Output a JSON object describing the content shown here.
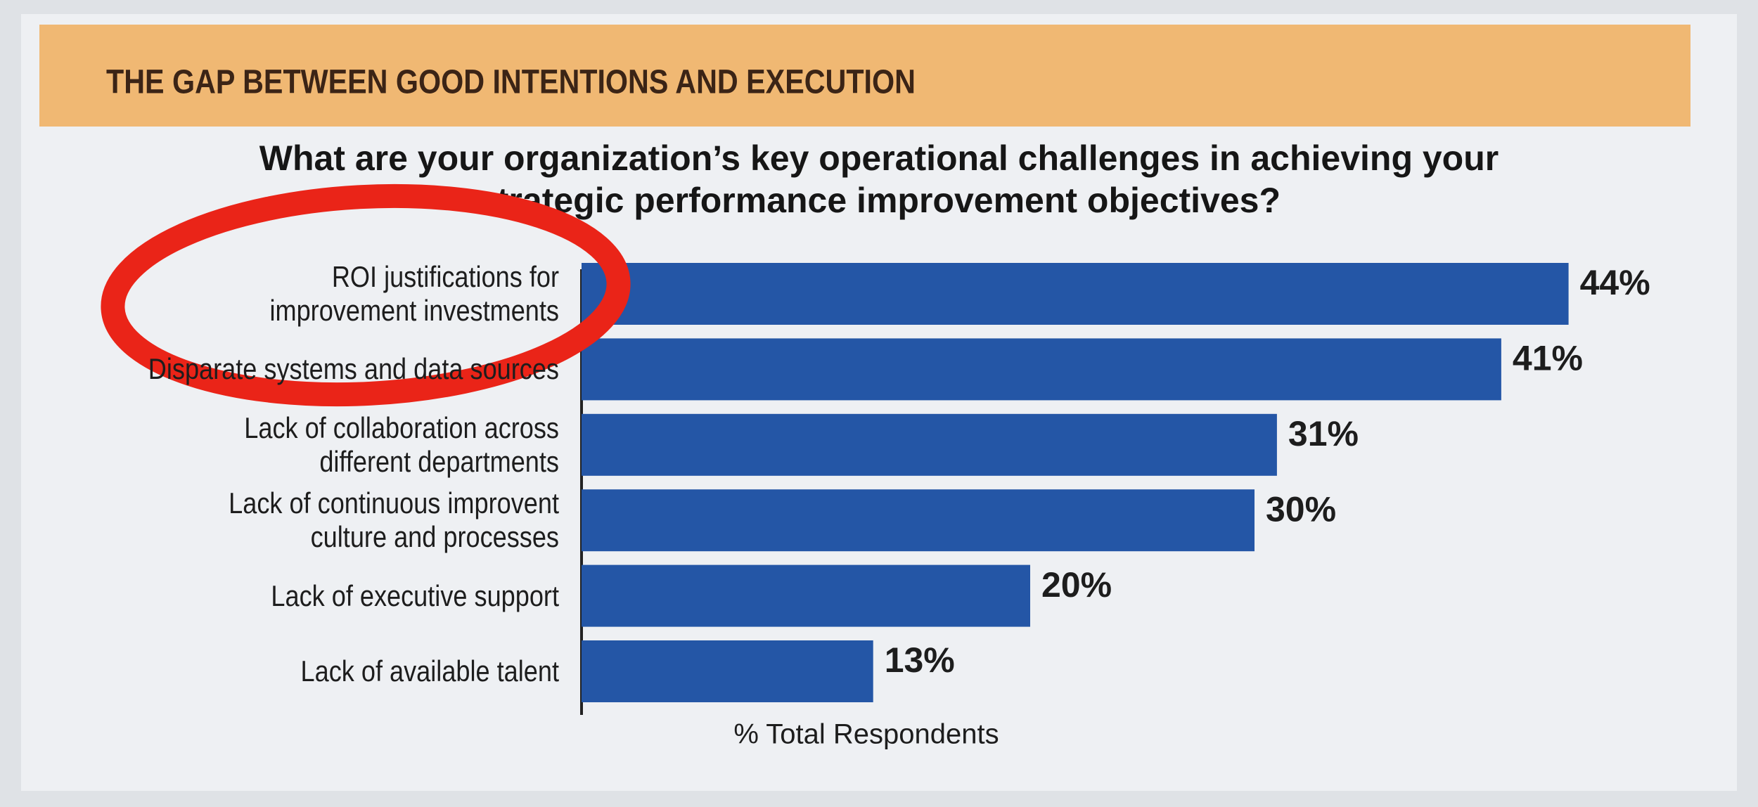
{
  "chart_data": {
    "type": "barh",
    "title": "THE GAP BETWEEN GOOD INTENTIONS AND EXECUTION",
    "subtitle": "What are your organization’s key operational challenges in achieving your strategic performance improvement objectives?",
    "categories": [
      "ROI justifications for\nimprovement investments",
      "Disparate systems and data sources",
      "Lack of collaboration across\ndifferent departments",
      "Lack of continuous improvent\nculture and processes",
      "Lack of executive support",
      "Lack of available talent"
    ],
    "values": [
      44,
      41,
      31,
      30,
      20,
      13
    ],
    "value_labels": [
      "44%",
      "41%",
      "31%",
      "30%",
      "20%",
      "13%"
    ],
    "xlabel": "% Total Respondents",
    "color": "#2456a6",
    "xlim": [
      0,
      50
    ]
  }
}
